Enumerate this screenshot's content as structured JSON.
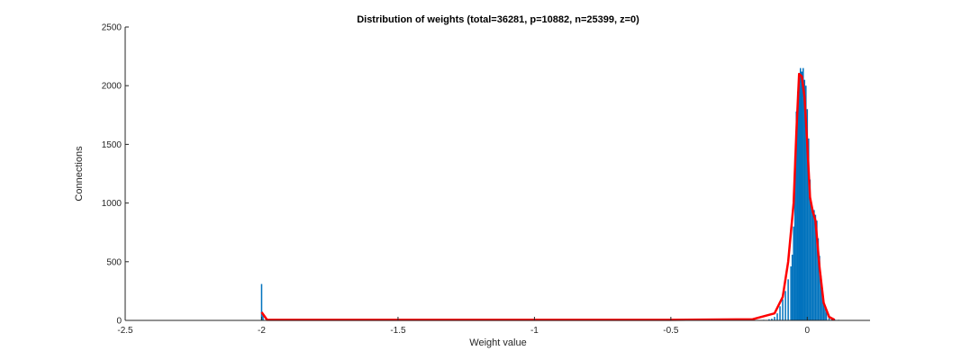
{
  "chart_data": {
    "type": "bar",
    "title": "Distribution of weights (total=36281, p=10882, n=25399, z=0)",
    "xlabel": "Weight value",
    "ylabel": "Connections",
    "xlim": [
      -2.5,
      0.23
    ],
    "ylim": [
      0,
      2500
    ],
    "x_ticks": [
      -2.5,
      -2,
      -1.5,
      -1,
      -0.5,
      0
    ],
    "x_tick_labels": [
      "-2.5",
      "-2",
      "-1.5",
      "-1",
      "-0.5",
      "0"
    ],
    "y_ticks": [
      0,
      500,
      1000,
      1500,
      2000,
      2500
    ],
    "y_tick_labels": [
      "0",
      "500",
      "1000",
      "1500",
      "2000",
      "2500"
    ],
    "grid": false,
    "colors": {
      "bars": "#0072BD",
      "fit": "#FF0000",
      "axis": "#262626"
    },
    "series": [
      {
        "kind": "histogram",
        "bins": [
          [
            -2.0,
            310
          ],
          [
            -1.995,
            60
          ],
          [
            -0.16,
            5
          ],
          [
            -0.14,
            10
          ],
          [
            -0.13,
            15
          ],
          [
            -0.12,
            30
          ],
          [
            -0.11,
            60
          ],
          [
            -0.1,
            120
          ],
          [
            -0.09,
            180
          ],
          [
            -0.08,
            250
          ],
          [
            -0.07,
            350
          ],
          [
            -0.06,
            460
          ],
          [
            -0.055,
            560
          ],
          [
            -0.05,
            800
          ],
          [
            -0.045,
            1400
          ],
          [
            -0.04,
            1780
          ],
          [
            -0.035,
            1950
          ],
          [
            -0.03,
            2100
          ],
          [
            -0.025,
            2150
          ],
          [
            -0.02,
            2120
          ],
          [
            -0.015,
            2150
          ],
          [
            -0.01,
            2050
          ],
          [
            -0.005,
            2000
          ],
          [
            0.0,
            1800
          ],
          [
            0.005,
            1550
          ],
          [
            0.01,
            1200
          ],
          [
            0.015,
            970
          ],
          [
            0.02,
            950
          ],
          [
            0.025,
            940
          ],
          [
            0.03,
            900
          ],
          [
            0.035,
            850
          ],
          [
            0.04,
            700
          ],
          [
            0.045,
            550
          ],
          [
            0.05,
            380
          ],
          [
            0.055,
            260
          ],
          [
            0.06,
            170
          ],
          [
            0.065,
            110
          ],
          [
            0.07,
            70
          ],
          [
            0.08,
            40
          ],
          [
            0.09,
            20
          ],
          [
            0.1,
            10
          ],
          [
            0.115,
            5
          ],
          [
            0.13,
            3
          ]
        ]
      },
      {
        "kind": "line",
        "points": [
          [
            -2.0,
            70
          ],
          [
            -1.98,
            5
          ],
          [
            -1.5,
            5
          ],
          [
            -1.0,
            5
          ],
          [
            -0.5,
            5
          ],
          [
            -0.2,
            10
          ],
          [
            -0.12,
            60
          ],
          [
            -0.09,
            200
          ],
          [
            -0.07,
            500
          ],
          [
            -0.05,
            1000
          ],
          [
            -0.04,
            1600
          ],
          [
            -0.03,
            2100
          ],
          [
            -0.02,
            2080
          ],
          [
            -0.01,
            1900
          ],
          [
            0.0,
            1500
          ],
          [
            0.01,
            1050
          ],
          [
            0.02,
            930
          ],
          [
            0.03,
            850
          ],
          [
            0.045,
            450
          ],
          [
            0.06,
            150
          ],
          [
            0.08,
            30
          ],
          [
            0.1,
            5
          ]
        ]
      }
    ]
  }
}
